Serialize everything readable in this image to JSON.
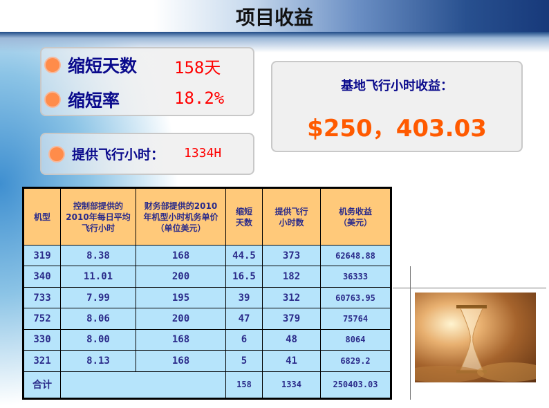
{
  "title": "项目收益",
  "summary": {
    "days_label": "缩短天数",
    "days_value": "158天",
    "rate_label": "缩短率",
    "rate_value": "18.2%",
    "hours_label": "提供飞行小时：",
    "hours_value": "1334H"
  },
  "revenue": {
    "label": "基地飞行小时收益：",
    "value": "$250，403.03"
  },
  "table": {
    "headers": [
      "机型",
      "控制部提供的2010年每日平均飞行小时",
      "财务部提供的2010年机型小时机务单价（单位美元）",
      "缩短天数",
      "提供飞行小时数",
      "机务收益（美元）"
    ],
    "rows": [
      [
        "319",
        "8.38",
        "168",
        "44.5",
        "373",
        "62648.88"
      ],
      [
        "340",
        "11.01",
        "200",
        "16.5",
        "182",
        "36333"
      ],
      [
        "733",
        "7.99",
        "195",
        "39",
        "312",
        "60763.95"
      ],
      [
        "752",
        "8.06",
        "200",
        "47",
        "379",
        "75764"
      ],
      [
        "330",
        "8.00",
        "168",
        "6",
        "48",
        "8064"
      ],
      [
        "321",
        "8.13",
        "168",
        "5",
        "41",
        "6829.2"
      ]
    ],
    "total": {
      "label": "合计",
      "days": "158",
      "hours": "1334",
      "revenue": "250403.03"
    }
  },
  "image": {
    "icon": "hourglass-coins-photo"
  }
}
